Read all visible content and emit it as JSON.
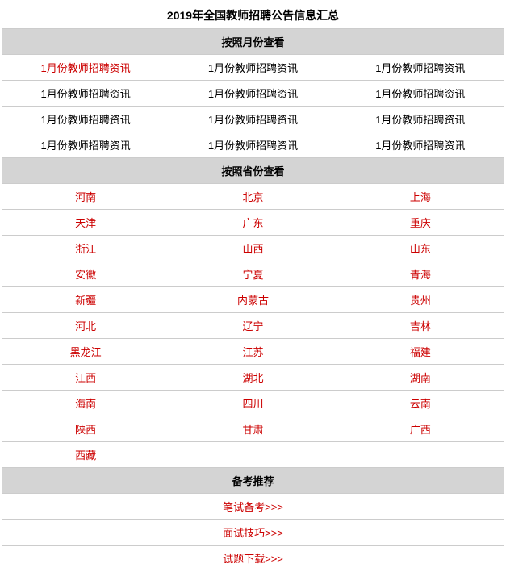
{
  "title": "2019年全国教师招聘公告信息汇总",
  "sections": {
    "month": {
      "header": "按照月份查看",
      "rows": [
        [
          {
            "text": "1月份教师招聘资讯",
            "red": true
          },
          {
            "text": "1月份教师招聘资讯",
            "red": false
          },
          {
            "text": "1月份教师招聘资讯",
            "red": false
          }
        ],
        [
          {
            "text": "1月份教师招聘资讯",
            "red": false
          },
          {
            "text": "1月份教师招聘资讯",
            "red": false
          },
          {
            "text": "1月份教师招聘资讯",
            "red": false
          }
        ],
        [
          {
            "text": "1月份教师招聘资讯",
            "red": false
          },
          {
            "text": "1月份教师招聘资讯",
            "red": false
          },
          {
            "text": "1月份教师招聘资讯",
            "red": false
          }
        ],
        [
          {
            "text": "1月份教师招聘资讯",
            "red": false
          },
          {
            "text": "1月份教师招聘资讯",
            "red": false
          },
          {
            "text": "1月份教师招聘资讯",
            "red": false
          }
        ]
      ]
    },
    "province": {
      "header": "按照省份查看",
      "rows": [
        [
          {
            "text": "河南",
            "red": true
          },
          {
            "text": "北京",
            "red": true
          },
          {
            "text": "上海",
            "red": true
          }
        ],
        [
          {
            "text": "天津",
            "red": true
          },
          {
            "text": "广东",
            "red": true
          },
          {
            "text": "重庆",
            "red": true
          }
        ],
        [
          {
            "text": "浙江",
            "red": true
          },
          {
            "text": "山西",
            "red": true
          },
          {
            "text": "山东",
            "red": true
          }
        ],
        [
          {
            "text": "安徽",
            "red": true
          },
          {
            "text": "宁夏",
            "red": true
          },
          {
            "text": "青海",
            "red": true
          }
        ],
        [
          {
            "text": "新疆",
            "red": true
          },
          {
            "text": "内蒙古",
            "red": true
          },
          {
            "text": "贵州",
            "red": true
          }
        ],
        [
          {
            "text": "河北",
            "red": true
          },
          {
            "text": "辽宁",
            "red": true
          },
          {
            "text": "吉林",
            "red": true
          }
        ],
        [
          {
            "text": "黑龙江",
            "red": true
          },
          {
            "text": "江苏",
            "red": true
          },
          {
            "text": "福建",
            "red": true
          }
        ],
        [
          {
            "text": "江西",
            "red": true
          },
          {
            "text": "湖北",
            "red": true
          },
          {
            "text": "湖南",
            "red": true
          }
        ],
        [
          {
            "text": "海南",
            "red": true
          },
          {
            "text": "四川",
            "red": true
          },
          {
            "text": "云南",
            "red": true
          }
        ],
        [
          {
            "text": "陕西",
            "red": true
          },
          {
            "text": "甘肃",
            "red": true
          },
          {
            "text": "广西",
            "red": true
          }
        ],
        [
          {
            "text": "西藏",
            "red": true
          },
          {
            "text": "",
            "red": false
          },
          {
            "text": "",
            "red": false
          }
        ]
      ]
    },
    "recommend": {
      "header": "备考推荐",
      "rows": [
        [
          {
            "text": "笔试备考>>>",
            "red": true
          }
        ],
        [
          {
            "text": "面试技巧>>>",
            "red": true
          }
        ],
        [
          {
            "text": "试题下载>>>",
            "red": true
          }
        ]
      ]
    }
  },
  "colors": {
    "border": "#cccccc",
    "section_bg": "#d4d4d4",
    "link_red": "#cc0000",
    "link_black": "#000000",
    "background": "#ffffff"
  }
}
